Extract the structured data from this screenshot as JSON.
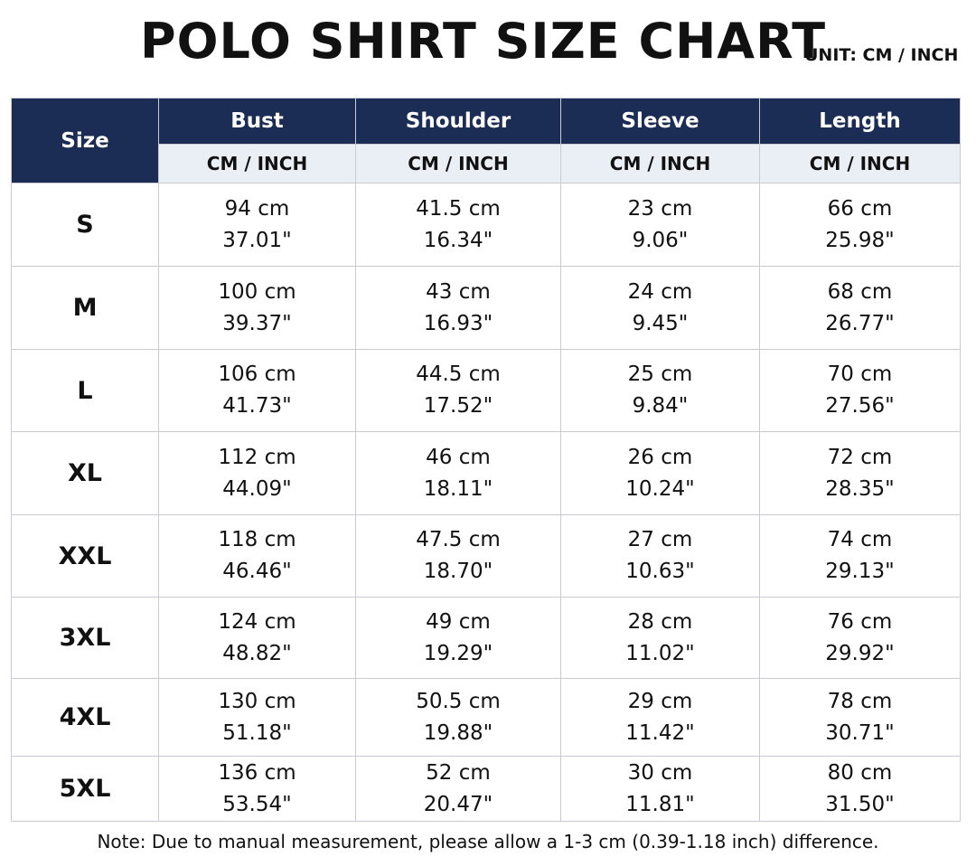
{
  "header": {
    "title": "POLO SHIRT SIZE CHART",
    "unit": "UNIT: CM / INCH"
  },
  "table": {
    "columns": [
      "Size",
      "Bust",
      "Shoulder",
      "Sleeve",
      "Length"
    ],
    "units": [
      "CM / INCH",
      "CM / INCH",
      "CM / INCH",
      "CM / INCH"
    ],
    "rows": [
      {
        "size": "S",
        "cells": [
          [
            "94 cm",
            "37.01\""
          ],
          [
            "41.5 cm",
            "16.34\""
          ],
          [
            "23 cm",
            "9.06\""
          ],
          [
            "66 cm",
            "25.98\""
          ]
        ]
      },
      {
        "size": "M",
        "cells": [
          [
            "100 cm",
            "39.37\""
          ],
          [
            "43 cm",
            "16.93\""
          ],
          [
            "24 cm",
            "9.45\""
          ],
          [
            "68 cm",
            "26.77\""
          ]
        ]
      },
      {
        "size": "L",
        "cells": [
          [
            "106 cm",
            "41.73\""
          ],
          [
            "44.5 cm",
            "17.52\""
          ],
          [
            "25 cm",
            "9.84\""
          ],
          [
            "70 cm",
            "27.56\""
          ]
        ]
      },
      {
        "size": "XL",
        "cells": [
          [
            "112 cm",
            "44.09\""
          ],
          [
            "46 cm",
            "18.11\""
          ],
          [
            "26 cm",
            "10.24\""
          ],
          [
            "72 cm",
            "28.35\""
          ]
        ]
      },
      {
        "size": "XXL",
        "cells": [
          [
            "118 cm",
            "46.46\""
          ],
          [
            "47.5 cm",
            "18.70\""
          ],
          [
            "27 cm",
            "10.63\""
          ],
          [
            "74 cm",
            "29.13\""
          ]
        ]
      },
      {
        "size": "3XL",
        "cells": [
          [
            "124 cm",
            "48.82\""
          ],
          [
            "49 cm",
            "19.29\""
          ],
          [
            "28 cm",
            "11.02\""
          ],
          [
            "76 cm",
            "29.92\""
          ]
        ]
      },
      {
        "size": "4XL",
        "cells": [
          [
            "130 cm",
            "51.18\""
          ],
          [
            "50.5 cm",
            "19.88\""
          ],
          [
            "29 cm",
            "11.42\""
          ],
          [
            "78 cm",
            "30.71\""
          ]
        ]
      },
      {
        "size": "5XL",
        "cells": [
          [
            "136 cm",
            "53.54\""
          ],
          [
            "52 cm",
            "20.47\""
          ],
          [
            "30 cm",
            "11.81\""
          ],
          [
            "80 cm",
            "31.50\""
          ]
        ]
      }
    ]
  },
  "note": "Note: Due to manual measurement, please allow a 1-3 cm (0.39-1.18 inch) difference."
}
